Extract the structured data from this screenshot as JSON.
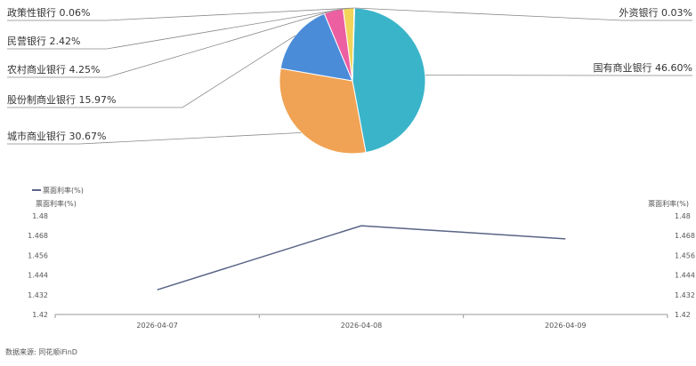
{
  "chart_data": [
    {
      "type": "pie",
      "slices": [
        {
          "label": "国有商业银行 46.60%",
          "value": 46.6,
          "color": "#3ab4c9"
        },
        {
          "label": "城市商业银行 30.67%",
          "value": 30.67,
          "color": "#f0a354"
        },
        {
          "label": "股份制商业银行 15.97%",
          "value": 15.97,
          "color": "#4a8cd8"
        },
        {
          "label": "农村商业银行 4.25%",
          "value": 4.25,
          "color": "#ec5fa1"
        },
        {
          "label": "民营银行 2.42%",
          "value": 2.42,
          "color": "#f2d45a"
        },
        {
          "label": "政策性银行 0.06%",
          "value": 0.06,
          "color": "#8a6ad0"
        },
        {
          "label": "外资银行 0.03%",
          "value": 0.03,
          "color": "#5cc28a"
        }
      ]
    },
    {
      "type": "line",
      "legend": "票面利率(%)",
      "ylabel_left": "票面利率(%)",
      "ylabel_right": "票面利率(%)",
      "categories": [
        "2026-04-07",
        "2026-04-08",
        "2026-04-09"
      ],
      "series": [
        {
          "name": "票面利率(%)",
          "values": [
            1.435,
            1.474,
            1.466
          ],
          "color": "#5a6485"
        }
      ],
      "ylim": [
        1.42,
        1.48
      ],
      "yticks": [
        "1.48",
        "1.468",
        "1.456",
        "1.444",
        "1.432",
        "1.42"
      ],
      "grid": false
    }
  ],
  "source": "数据来源: 同花顺iFinD"
}
